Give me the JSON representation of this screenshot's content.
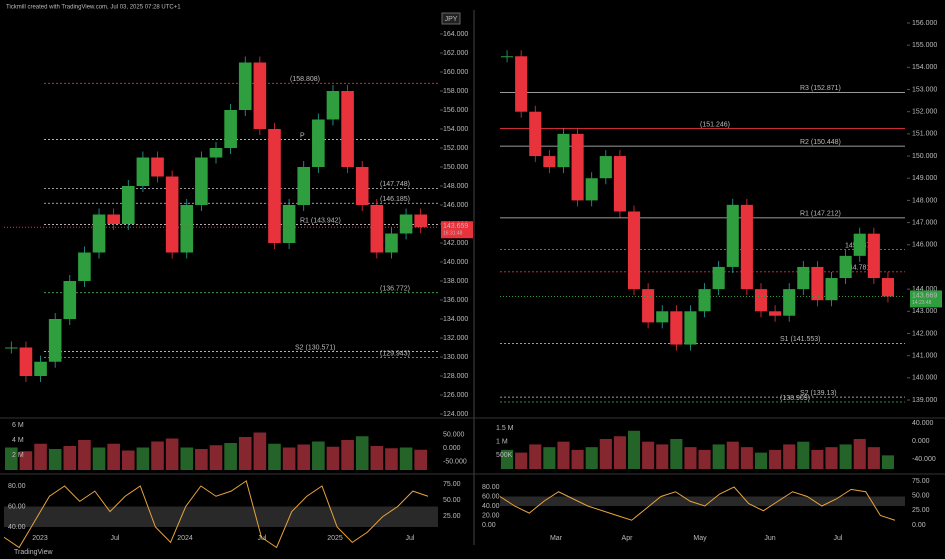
{
  "header": {
    "title": "Tickmill created with TradingView.com, Jul 03, 2025 07:28 UTC+1",
    "currency": "JPY"
  },
  "footer": {
    "brand": "TradingView"
  },
  "panes": [
    {
      "price_ticks": [
        {
          "value": 164,
          "label": "164.000"
        },
        {
          "value": 162,
          "label": "162.000"
        },
        {
          "value": 160,
          "label": "160.000"
        },
        {
          "value": 158,
          "label": "158.000"
        },
        {
          "value": 156,
          "label": "156.000"
        },
        {
          "value": 154,
          "label": "154.000"
        },
        {
          "value": 152,
          "label": "152.000"
        },
        {
          "value": 150,
          "label": "150.000"
        },
        {
          "value": 148,
          "label": "148.000"
        },
        {
          "value": 146,
          "label": "146.000"
        },
        {
          "value": 144,
          "label": "144.000"
        },
        {
          "value": 142,
          "label": "142.000"
        },
        {
          "value": 140,
          "label": "140.000"
        },
        {
          "value": 138,
          "label": "138.000"
        },
        {
          "value": 136,
          "label": "136.000"
        },
        {
          "value": 134,
          "label": "134.000"
        },
        {
          "value": 132,
          "label": "132.000"
        },
        {
          "value": 130,
          "label": "130.000"
        },
        {
          "value": 128,
          "label": "128.000"
        },
        {
          "value": 126,
          "label": "126.000"
        },
        {
          "value": 124,
          "label": "124.000"
        }
      ],
      "price_lim": [
        124,
        164
      ],
      "levels": [
        {
          "label": "(158.808)",
          "value": 158.808,
          "color": "#e8323c"
        },
        {
          "label": "P",
          "value": 152.9,
          "color": "#cccccc"
        },
        {
          "label": "(147.748)",
          "value": 147.748,
          "color": "#cccccc"
        },
        {
          "label": "(146.185)",
          "value": 146.185,
          "color": "#cccccc"
        },
        {
          "label": "R1 (143.942)",
          "value": 143.942,
          "color": "#cccccc"
        },
        {
          "label": "(136.772)",
          "value": 136.772,
          "color": "#4caf50"
        },
        {
          "label": "S2 (130.571)",
          "value": 130.571,
          "color": "#cccccc"
        },
        {
          "label": "(129.943)",
          "value": 129.943,
          "color": "#4caf50"
        }
      ],
      "last_price": {
        "label": "143.659",
        "value": 143.659,
        "countdown": "16:31:48",
        "color": "#e8323c"
      },
      "closes": [
        131,
        128,
        129.5,
        134,
        138,
        141,
        145,
        144,
        148,
        151,
        149,
        141,
        146,
        151,
        152,
        156,
        161,
        154,
        142,
        146,
        150,
        155,
        158,
        150,
        146,
        141,
        143,
        145,
        143.659
      ],
      "x_labels": [
        "2023",
        "Jul",
        "2024",
        "Jul",
        "2025",
        "Jul"
      ],
      "volume": [
        3,
        2.5,
        3.5,
        2.8,
        3.2,
        4,
        3,
        3.5,
        2.6,
        3,
        3.8,
        4.2,
        3,
        2.8,
        3.3,
        3.6,
        4.4,
        5,
        3.5,
        3,
        3.4,
        3.8,
        3.1,
        4,
        4.5,
        3.2,
        2.9,
        3,
        2.7
      ],
      "volume_ticks": [
        {
          "value": 6,
          "label": "6 M"
        },
        {
          "value": 4,
          "label": "4 M"
        },
        {
          "value": 2,
          "label": "2 M"
        }
      ],
      "flow_ticks": [
        {
          "value": 50,
          "label": "50.000"
        },
        {
          "value": 0,
          "label": "0.000"
        },
        {
          "value": -50,
          "label": "-50.000"
        }
      ],
      "osc": [
        30,
        20,
        45,
        70,
        80,
        65,
        75,
        55,
        70,
        80,
        40,
        25,
        60,
        80,
        70,
        75,
        85,
        30,
        20,
        55,
        70,
        80,
        40,
        25,
        35,
        50,
        60,
        75,
        70
      ],
      "osc_ticks": [
        {
          "value": 80,
          "label": "80.00"
        },
        {
          "value": 60,
          "label": "60.00"
        },
        {
          "value": 40,
          "label": "40.00"
        }
      ],
      "osc_ticks_right": [
        {
          "value": 75,
          "label": "75.00"
        },
        {
          "value": 50,
          "label": "50.00"
        },
        {
          "value": 25,
          "label": "25.00"
        }
      ]
    },
    {
      "price_ticks": [
        {
          "value": 156,
          "label": "156.000"
        },
        {
          "value": 155,
          "label": "155.000"
        },
        {
          "value": 154,
          "label": "154.000"
        },
        {
          "value": 153,
          "label": "153.000"
        },
        {
          "value": 152,
          "label": "152.000"
        },
        {
          "value": 151,
          "label": "151.000"
        },
        {
          "value": 150,
          "label": "150.000"
        },
        {
          "value": 149,
          "label": "149.000"
        },
        {
          "value": 148,
          "label": "148.000"
        },
        {
          "value": 147,
          "label": "147.000"
        },
        {
          "value": 146,
          "label": "146.000"
        },
        {
          "value": 144,
          "label": "144.000"
        },
        {
          "value": 143,
          "label": "143.000"
        },
        {
          "value": 142,
          "label": "142.000"
        },
        {
          "value": 141,
          "label": "141.000"
        },
        {
          "value": 140,
          "label": "140.000"
        },
        {
          "value": 139,
          "label": "139.000"
        }
      ],
      "price_lim": [
        139,
        156
      ],
      "levels": [
        {
          "label": "R3 (152.871)",
          "value": 152.871,
          "color": "#cccccc"
        },
        {
          "label": "(151.246)",
          "value": 151.246,
          "color": "#e8323c"
        },
        {
          "label": "R2 (150.448)",
          "value": 150.448,
          "color": "#cccccc"
        },
        {
          "label": "R1 (147.212)",
          "value": 147.212,
          "color": "#cccccc"
        },
        {
          "label": "145.787",
          "value": 145.787,
          "color": "#4caf50"
        },
        {
          "label": "144.781",
          "value": 144.781,
          "color": "#e8323c"
        },
        {
          "label": "S1 (141.553)",
          "value": 141.553,
          "color": "#cccccc"
        },
        {
          "label": "S2 (139.13)",
          "value": 139.13,
          "color": "#cccccc"
        },
        {
          "label": "(138.909)",
          "value": 138.909,
          "color": "#4caf50"
        }
      ],
      "last_price": {
        "label": "143.669",
        "value": 143.669,
        "countdown": "14:23:48",
        "color": "#2e9e3e"
      },
      "closes": [
        154.5,
        152,
        150,
        149.5,
        151,
        148,
        149,
        150,
        147.5,
        144,
        142.5,
        143,
        141.5,
        143,
        144,
        145,
        147.8,
        144,
        143,
        142.8,
        144,
        145,
        143.5,
        144.5,
        145.5,
        146.5,
        144.5,
        143.669
      ],
      "x_labels": [
        "Mar",
        "Apr",
        "May",
        "Jun",
        "Jul"
      ],
      "volume": [
        0.7,
        0.6,
        0.9,
        0.8,
        1,
        0.7,
        0.8,
        1.1,
        1.2,
        1.4,
        1,
        0.9,
        1.1,
        0.8,
        0.7,
        0.9,
        1,
        0.8,
        0.6,
        0.7,
        0.9,
        1,
        0.7,
        0.8,
        0.9,
        1.1,
        0.8,
        0.5
      ],
      "volume_ticks": [
        {
          "value": 1.5,
          "label": "1.5 M"
        },
        {
          "value": 1,
          "label": "1 M"
        },
        {
          "value": 0.5,
          "label": "500K"
        }
      ],
      "flow_ticks": [
        {
          "value": 40,
          "label": "40.000"
        },
        {
          "value": 0,
          "label": "0.000"
        },
        {
          "value": -40,
          "label": "-40.000"
        }
      ],
      "osc": [
        60,
        40,
        25,
        50,
        70,
        55,
        40,
        30,
        20,
        10,
        35,
        60,
        70,
        50,
        40,
        65,
        80,
        45,
        30,
        50,
        70,
        60,
        40,
        55,
        75,
        70,
        20,
        10
      ],
      "osc_ticks": [
        {
          "value": 80,
          "label": "80.00"
        },
        {
          "value": 60,
          "label": "60.00"
        },
        {
          "value": 40,
          "label": "40.00"
        },
        {
          "value": 20,
          "label": "20.00"
        },
        {
          "value": 0,
          "label": "0.00"
        }
      ],
      "osc_ticks_right": [
        {
          "value": 75,
          "label": "75.00"
        },
        {
          "value": 50,
          "label": "50.00"
        },
        {
          "value": 25,
          "label": "25.00"
        },
        {
          "value": 0,
          "label": "0.00"
        }
      ]
    }
  ]
}
